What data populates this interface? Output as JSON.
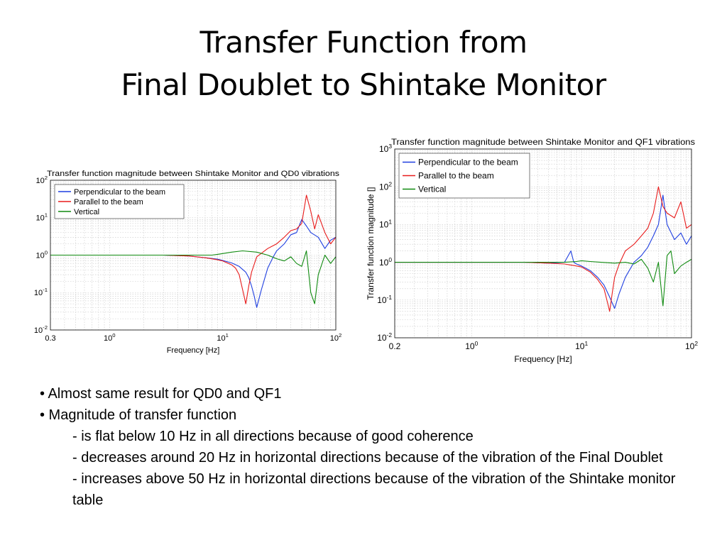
{
  "slide": {
    "title_line1": "Transfer Function from",
    "title_line2": "Final Doublet to Shintake Monitor",
    "bullets": [
      {
        "text": "• Almost same result for QD0 and QF1",
        "level": 0
      },
      {
        "text": "• Magnitude of transfer function",
        "level": 0
      },
      {
        "text": "- is flat below 10 Hz in all directions because of good coherence",
        "level": 1
      },
      {
        "text": "- decreases around 20 Hz in horizontal directions because of the vibration of the Final Doublet",
        "level": 1
      },
      {
        "text": "- increases above 50 Hz in horizontal directions because of the vibration of the Shintake monitor table",
        "level": 1
      }
    ]
  },
  "chart_data": [
    {
      "type": "line",
      "title": "Transfer function magnitude between Shintake Monitor and QD0 vibrations",
      "xlabel": "Frequency [Hz]",
      "ylabel": "",
      "xscale": "log",
      "yscale": "log",
      "xlim": [
        0.3,
        100
      ],
      "ylim": [
        0.01,
        100
      ],
      "xticks": [
        {
          "v": 0.3,
          "t": "0.3"
        },
        {
          "v": 1,
          "t": "10",
          "e": "0"
        },
        {
          "v": 10,
          "t": "10",
          "e": "1"
        },
        {
          "v": 100,
          "t": "10",
          "e": "2"
        }
      ],
      "yticks": [
        {
          "v": 0.01,
          "t": "10",
          "e": "-2"
        },
        {
          "v": 0.1,
          "t": "10",
          "e": "-1"
        },
        {
          "v": 1,
          "t": "10",
          "e": "0"
        },
        {
          "v": 10,
          "t": "10",
          "e": "1"
        },
        {
          "v": 100,
          "t": "10",
          "e": "2"
        }
      ],
      "grid": true,
      "legend": "top-left",
      "series": [
        {
          "name": "Perpendicular to the beam",
          "color": "#1f3fe0",
          "x": [
            0.3,
            1,
            3,
            5,
            7,
            9,
            10,
            12,
            14,
            16,
            17,
            18,
            19,
            20,
            22,
            25,
            28,
            30,
            35,
            40,
            45,
            50,
            55,
            60,
            70,
            80,
            90,
            100
          ],
          "y": [
            1.0,
            1.0,
            1.0,
            0.95,
            0.85,
            0.78,
            0.72,
            0.62,
            0.5,
            0.35,
            0.25,
            0.15,
            0.08,
            0.04,
            0.12,
            0.45,
            0.9,
            1.3,
            2.0,
            3.5,
            4.0,
            9.0,
            6.0,
            4.0,
            3.0,
            1.5,
            2.5,
            3.0
          ]
        },
        {
          "name": "Parallel to the beam",
          "color": "#e81c1c",
          "x": [
            0.3,
            1,
            3,
            5,
            7,
            9,
            10,
            12,
            13,
            14,
            15,
            16,
            17,
            18,
            20,
            25,
            30,
            35,
            40,
            45,
            50,
            55,
            60,
            65,
            70,
            80,
            90,
            100
          ],
          "y": [
            1.0,
            1.0,
            1.0,
            0.95,
            0.85,
            0.75,
            0.7,
            0.55,
            0.45,
            0.3,
            0.12,
            0.05,
            0.15,
            0.35,
            0.9,
            1.5,
            2.0,
            3.0,
            4.5,
            5.0,
            7.0,
            40.0,
            15.0,
            5.0,
            12.0,
            4.0,
            2.0,
            3.0
          ]
        },
        {
          "name": "Vertical",
          "color": "#108a10",
          "x": [
            0.3,
            1,
            3,
            5,
            7,
            8,
            9,
            10,
            12,
            15,
            20,
            25,
            30,
            35,
            40,
            45,
            50,
            55,
            60,
            65,
            70,
            80,
            90,
            100
          ],
          "y": [
            1.0,
            1.0,
            1.0,
            1.0,
            1.0,
            1.0,
            1.05,
            1.1,
            1.2,
            1.3,
            1.2,
            1.0,
            0.8,
            0.7,
            0.9,
            0.6,
            0.5,
            1.3,
            0.1,
            0.05,
            0.3,
            1.0,
            0.6,
            0.9
          ]
        }
      ]
    },
    {
      "type": "line",
      "title": "Transfer function magnitude between Shintake Monitor and QF1 vibrations",
      "xlabel": "Frequency [Hz]",
      "ylabel": "Transfer function magnitude []",
      "xscale": "log",
      "yscale": "log",
      "xlim": [
        0.2,
        100
      ],
      "ylim": [
        0.01,
        1000
      ],
      "xticks": [
        {
          "v": 0.2,
          "t": "0.2"
        },
        {
          "v": 1,
          "t": "10",
          "e": "0"
        },
        {
          "v": 10,
          "t": "10",
          "e": "1"
        },
        {
          "v": 100,
          "t": "10",
          "e": "2"
        }
      ],
      "yticks": [
        {
          "v": 0.01,
          "t": "10",
          "e": "-2"
        },
        {
          "v": 0.1,
          "t": "10",
          "e": "-1"
        },
        {
          "v": 1,
          "t": "10",
          "e": "0"
        },
        {
          "v": 10,
          "t": "10",
          "e": "1"
        },
        {
          "v": 100,
          "t": "10",
          "e": "2"
        },
        {
          "v": 1000,
          "t": "10",
          "e": "3"
        }
      ],
      "grid": true,
      "legend": "top-left",
      "series": [
        {
          "name": "Perpendicular to the beam",
          "color": "#1f3fe0",
          "x": [
            0.2,
            1,
            3,
            5,
            7,
            8,
            8.5,
            9,
            10,
            12,
            14,
            16,
            18,
            20,
            22,
            25,
            30,
            35,
            40,
            45,
            50,
            55,
            60,
            70,
            80,
            90,
            100
          ],
          "y": [
            1.0,
            1.0,
            1.0,
            0.95,
            1.0,
            2.0,
            1.0,
            0.9,
            0.8,
            0.6,
            0.4,
            0.25,
            0.12,
            0.06,
            0.15,
            0.4,
            1.0,
            1.5,
            2.5,
            5.0,
            10.0,
            60.0,
            10.0,
            4.0,
            6.0,
            3.0,
            5.0
          ]
        },
        {
          "name": "Parallel to the beam",
          "color": "#e81c1c",
          "x": [
            0.2,
            1,
            3,
            5,
            7,
            9,
            10,
            12,
            14,
            16,
            17,
            18,
            19,
            20,
            22,
            25,
            30,
            35,
            40,
            45,
            50,
            55,
            60,
            70,
            80,
            90,
            100
          ],
          "y": [
            1.0,
            1.0,
            1.0,
            0.95,
            0.9,
            0.8,
            0.75,
            0.55,
            0.35,
            0.2,
            0.1,
            0.05,
            0.15,
            0.4,
            0.9,
            2.0,
            3.0,
            5.0,
            8.0,
            20.0,
            100.0,
            30.0,
            20.0,
            15.0,
            40.0,
            8.0,
            10.0
          ]
        },
        {
          "name": "Vertical",
          "color": "#108a10",
          "x": [
            0.2,
            1,
            3,
            5,
            7,
            9,
            10,
            12,
            15,
            20,
            25,
            30,
            35,
            40,
            45,
            50,
            55,
            60,
            65,
            70,
            80,
            90,
            100
          ],
          "y": [
            1.0,
            1.0,
            1.0,
            1.0,
            1.0,
            1.05,
            1.1,
            1.05,
            1.0,
            0.95,
            1.0,
            0.9,
            1.2,
            0.7,
            0.3,
            1.0,
            0.07,
            1.5,
            2.0,
            0.5,
            0.8,
            1.0,
            1.2
          ]
        }
      ]
    }
  ]
}
